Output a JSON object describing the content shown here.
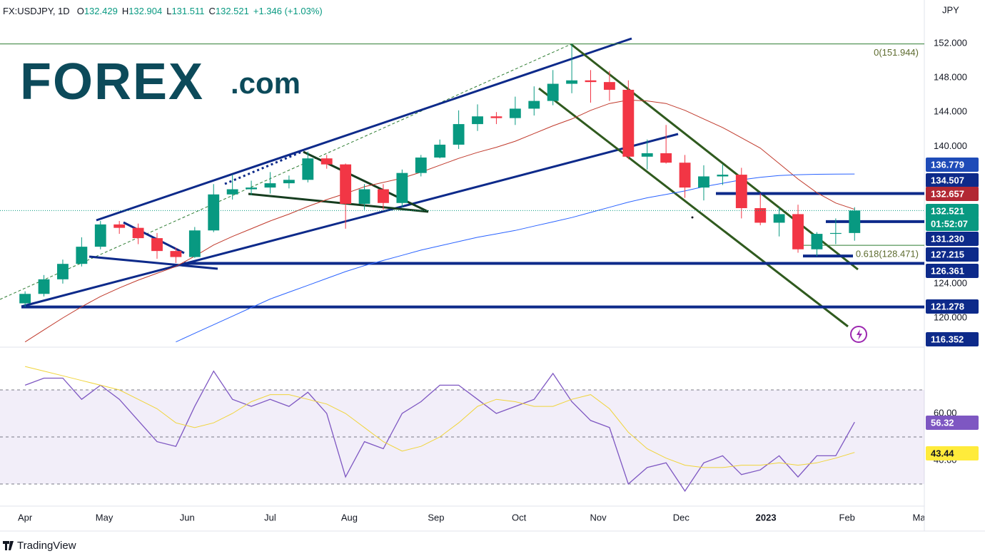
{
  "header": {
    "symbol": "FX:USDJPY, 1D",
    "fields": [
      {
        "key": "O",
        "value": "132.429"
      },
      {
        "key": "H",
        "value": "132.904"
      },
      {
        "key": "L",
        "value": "131.511"
      },
      {
        "key": "C",
        "value": "132.521"
      }
    ],
    "change": "+1.346 (+1.03%)",
    "currency": "JPY",
    "countdown": "01:52:07"
  },
  "logo": {
    "brand": "FOREX",
    "suffix": ".com"
  },
  "footer": {
    "brand": "TradingView"
  },
  "chart_data": [
    {
      "type": "candlestick",
      "xlim": [
        -1.33,
        47.7
      ],
      "xticks": [
        {
          "value": 0,
          "label": "Apr"
        },
        {
          "value": 4.2,
          "label": "May"
        },
        {
          "value": 8.6,
          "label": "Jun"
        },
        {
          "value": 13.0,
          "label": "Jul"
        },
        {
          "value": 17.2,
          "label": "Aug"
        },
        {
          "value": 21.8,
          "label": "Sep"
        },
        {
          "value": 26.2,
          "label": "Oct"
        },
        {
          "value": 30.4,
          "label": "Nov"
        },
        {
          "value": 34.8,
          "label": "Dec"
        },
        {
          "value": 39.3,
          "label": "2023"
        },
        {
          "value": 43.6,
          "label": "Feb"
        },
        {
          "value": 47.5,
          "label": "Mar"
        }
      ],
      "ylim": [
        116.59,
        157.07
      ],
      "yticks": [
        {
          "value": 120,
          "label": "120.000"
        },
        {
          "value": 124,
          "label": "124.000"
        },
        {
          "value": 140,
          "label": "140.000"
        },
        {
          "value": 144,
          "label": "144.000"
        },
        {
          "value": 148,
          "label": "148.000"
        },
        {
          "value": 152,
          "label": "152.000"
        }
      ],
      "up_color": "#089981",
      "down_color": "#f23645",
      "open": [
        121.7,
        122.8,
        124.5,
        126.3,
        128.3,
        130.9,
        130.5,
        129.3,
        127.8,
        127.1,
        130.2,
        134.4,
        135.0,
        135.2,
        135.7,
        136.1,
        138.6,
        137.9,
        133.3,
        135.0,
        133.4,
        136.9,
        138.7,
        140.2,
        142.6,
        143.5,
        143.3,
        144.4,
        145.3,
        147.3,
        147.7,
        147.5,
        146.6,
        138.8,
        139.2,
        138.1,
        135.2,
        136.5,
        136.7,
        132.8,
        131.1,
        132.1,
        128.0,
        129.8,
        129.9
      ],
      "high": [
        123.1,
        125.0,
        126.8,
        129.4,
        131.3,
        131.3,
        131.0,
        129.9,
        128.2,
        130.6,
        135.6,
        136.7,
        136.0,
        137.0,
        136.6,
        139.4,
        139.0,
        138.0,
        135.6,
        135.6,
        137.3,
        139.0,
        140.8,
        144.2,
        144.9,
        144.0,
        145.8,
        147.0,
        148.9,
        151.944,
        148.9,
        148.8,
        147.7,
        140.8,
        142.5,
        139.0,
        137.8,
        137.9,
        137.5,
        134.5,
        132.9,
        133.2,
        130.0,
        131.6,
        132.904
      ],
      "low": [
        121.3,
        122.5,
        124.0,
        126.0,
        128.0,
        129.8,
        128.6,
        126.9,
        126.4,
        127.0,
        130.0,
        133.8,
        134.3,
        134.5,
        135.1,
        135.8,
        137.4,
        130.4,
        132.6,
        132.6,
        132.9,
        136.5,
        138.6,
        139.7,
        141.8,
        142.6,
        142.5,
        143.6,
        144.8,
        146.2,
        145.1,
        145.3,
        138.5,
        137.3,
        138.0,
        134.0,
        133.7,
        135.5,
        131.6,
        130.8,
        129.5,
        127.6,
        127.2,
        128.6,
        129.0
      ],
      "close": [
        122.8,
        124.5,
        126.3,
        128.3,
        130.9,
        130.5,
        129.3,
        127.8,
        127.1,
        130.2,
        134.4,
        135.0,
        135.2,
        135.7,
        136.1,
        138.6,
        137.9,
        133.3,
        135.0,
        133.4,
        136.9,
        138.7,
        140.2,
        142.6,
        143.5,
        143.3,
        144.4,
        145.3,
        147.3,
        147.7,
        147.5,
        146.6,
        138.8,
        139.2,
        138.1,
        135.2,
        136.5,
        136.7,
        132.8,
        131.1,
        132.1,
        128.0,
        129.8,
        129.9,
        132.521
      ],
      "series": [
        {
          "color": "#c0392b",
          "values": [
            117.2,
            118.6,
            120.0,
            121.3,
            122.5,
            123.5,
            124.4,
            125.2,
            126.0,
            127.2,
            128.5,
            129.5,
            130.4,
            131.3,
            132.1,
            133.0,
            133.8,
            134.5,
            135.3,
            135.8,
            136.3,
            137.0,
            137.8,
            138.6,
            139.3,
            139.9,
            140.6,
            141.5,
            142.4,
            143.2,
            144.2,
            145.0,
            145.4,
            145.3,
            145.0,
            144.2,
            143.2,
            142.2,
            141.0,
            139.8,
            138.0,
            136.2,
            134.6,
            133.4,
            132.657
          ]
        },
        {
          "color": "#2962ff",
          "values": [
            null,
            null,
            null,
            null,
            null,
            null,
            null,
            null,
            117.2,
            118.2,
            119.2,
            120.2,
            121.2,
            122.2,
            123.0,
            123.8,
            124.6,
            125.4,
            126.1,
            126.7,
            127.3,
            127.9,
            128.4,
            128.9,
            129.4,
            129.8,
            130.2,
            130.7,
            131.2,
            131.7,
            132.3,
            132.9,
            133.5,
            134.0,
            134.4,
            134.8,
            135.3,
            135.7,
            136.1,
            136.4,
            136.6,
            136.7,
            136.75,
            136.77,
            136.779
          ]
        }
      ],
      "levels": [
        {
          "value": 134.507,
          "label": "134.507"
        },
        {
          "value": 131.23,
          "label": "131.230"
        },
        {
          "value": 127.215,
          "label": "127.215"
        },
        {
          "value": 126.361,
          "label": "126.361"
        },
        {
          "value": 121.278,
          "label": "121.278"
        },
        {
          "value": 116.352,
          "label": "116.352"
        }
      ],
      "fib": [
        {
          "value": 151.944,
          "label": "0(151.944)"
        },
        {
          "value": 128.471,
          "label": "0.618(128.471)"
        }
      ]
    },
    {
      "type": "line",
      "ylim": [
        20.6,
        88.2
      ],
      "yticks": [
        {
          "value": 40,
          "label": "40.00"
        },
        {
          "value": 60,
          "label": "60.00"
        }
      ],
      "bands": [
        70,
        50,
        30
      ],
      "series": [
        {
          "color": "#7e57c2",
          "values": [
            72,
            75,
            75,
            66,
            72,
            66,
            57,
            48,
            46,
            63,
            78,
            66,
            63,
            66,
            63,
            69,
            60,
            33,
            48,
            45,
            60,
            65,
            72,
            72,
            66,
            60,
            63,
            66,
            77,
            65,
            57,
            54,
            30,
            37,
            39,
            27,
            39,
            42,
            34,
            36,
            42,
            33,
            42,
            42,
            56.32
          ]
        },
        {
          "color": "#f0d43a",
          "values": [
            80,
            78,
            76,
            74,
            72,
            70,
            66,
            62,
            56,
            54,
            56,
            60,
            65,
            68,
            68,
            66,
            64,
            60,
            54,
            48,
            44,
            46,
            50,
            56,
            63,
            66,
            65,
            63,
            63,
            66,
            68,
            62,
            52,
            45,
            41,
            38,
            37,
            37,
            38,
            38,
            39,
            38,
            39,
            41,
            43.44
          ]
        }
      ]
    }
  ]
}
